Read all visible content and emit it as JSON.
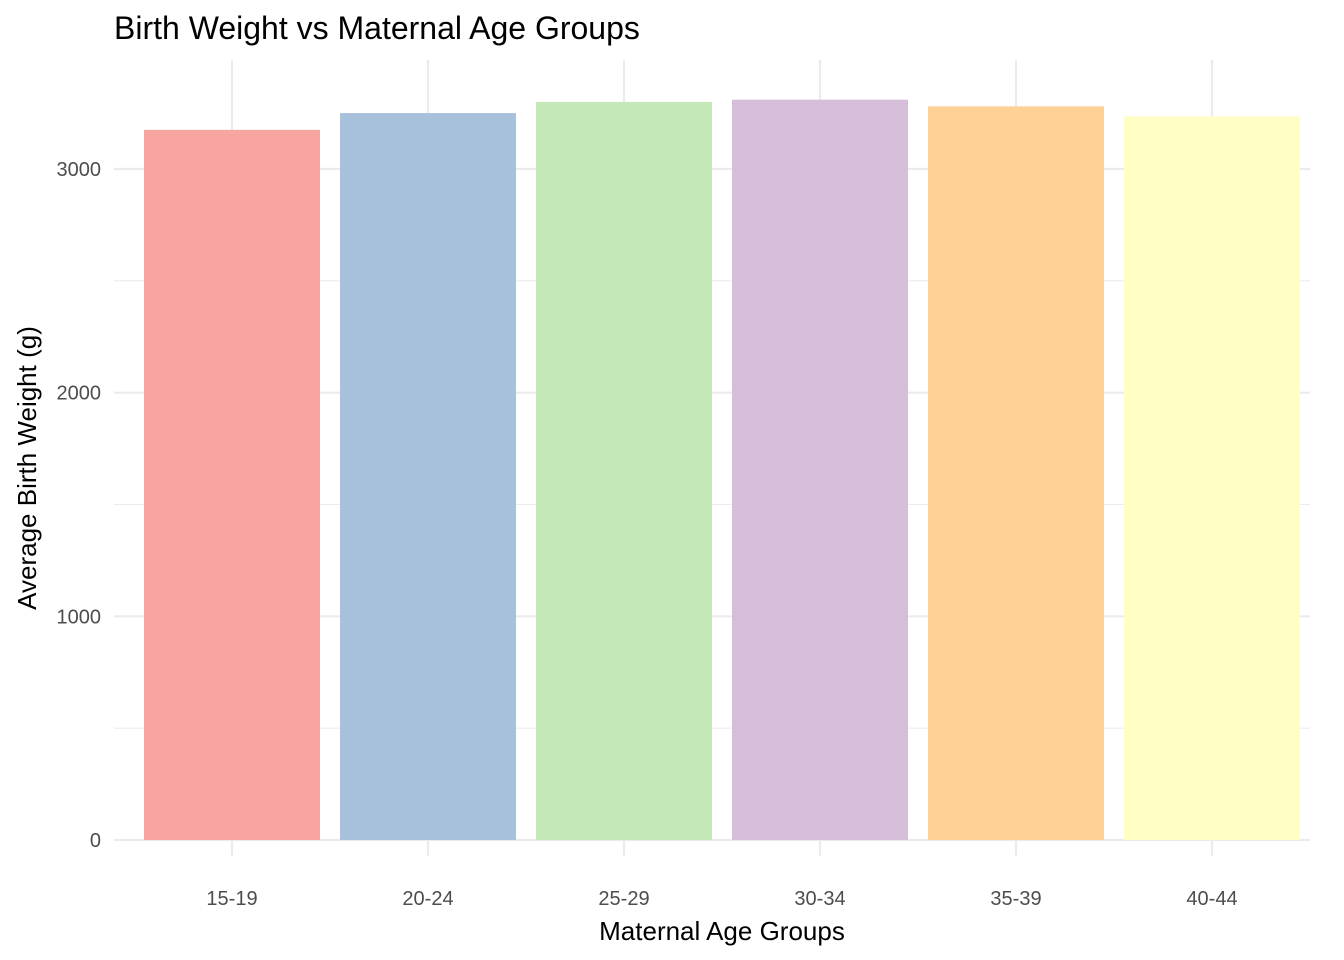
{
  "chart_data": {
    "type": "bar",
    "title": "Birth Weight vs Maternal Age Groups",
    "xlabel": "Maternal Age Groups",
    "ylabel": "Average Birth Weight (g)",
    "categories": [
      "15-19",
      "20-24",
      "25-29",
      "30-34",
      "35-39",
      "40-44"
    ],
    "values": [
      3175,
      3250,
      3300,
      3310,
      3280,
      3235
    ],
    "colors": [
      "#F8A5A0",
      "#A7C1DC",
      "#C5E8B8",
      "#D6BEDB",
      "#FDD196",
      "#FFFFC5"
    ],
    "ylim": [
      0,
      3480
    ],
    "yticks": [
      0,
      1000,
      2000,
      3000
    ],
    "ytick_labels": [
      "0",
      "1000",
      "2000",
      "3000"
    ],
    "grid": true,
    "legend": "none"
  }
}
